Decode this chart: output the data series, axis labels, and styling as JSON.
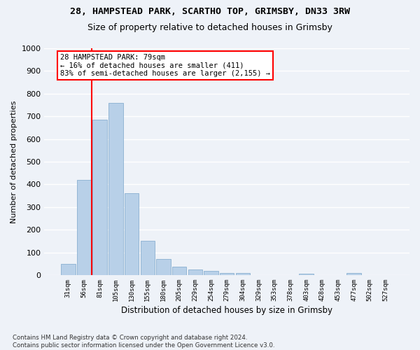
{
  "title1": "28, HAMPSTEAD PARK, SCARTHO TOP, GRIMSBY, DN33 3RW",
  "title2": "Size of property relative to detached houses in Grimsby",
  "xlabel": "Distribution of detached houses by size in Grimsby",
  "ylabel": "Number of detached properties",
  "footnote": "Contains HM Land Registry data © Crown copyright and database right 2024.\nContains public sector information licensed under the Open Government Licence v3.0.",
  "bar_labels": [
    "31sqm",
    "56sqm",
    "81sqm",
    "105sqm",
    "130sqm",
    "155sqm",
    "180sqm",
    "205sqm",
    "229sqm",
    "254sqm",
    "279sqm",
    "304sqm",
    "329sqm",
    "353sqm",
    "378sqm",
    "403sqm",
    "428sqm",
    "453sqm",
    "477sqm",
    "502sqm",
    "527sqm"
  ],
  "bar_values": [
    50,
    420,
    685,
    760,
    360,
    150,
    70,
    37,
    25,
    17,
    10,
    8,
    0,
    0,
    0,
    7,
    0,
    0,
    10,
    0,
    0
  ],
  "bar_color": "#b8d0e8",
  "bar_edge_color": "#8ab0d0",
  "vline_x": 1.5,
  "vline_color": "red",
  "annotation_box_text": "28 HAMPSTEAD PARK: 79sqm\n← 16% of detached houses are smaller (411)\n83% of semi-detached houses are larger (2,155) →",
  "ylim": [
    0,
    1000
  ],
  "yticks": [
    0,
    100,
    200,
    300,
    400,
    500,
    600,
    700,
    800,
    900,
    1000
  ],
  "bg_color": "#eef2f8",
  "plot_bg_color": "#eef2f8",
  "title1_fontsize": 9.5,
  "title2_fontsize": 9.0,
  "ylabel_fontsize": 8,
  "xlabel_fontsize": 8.5
}
